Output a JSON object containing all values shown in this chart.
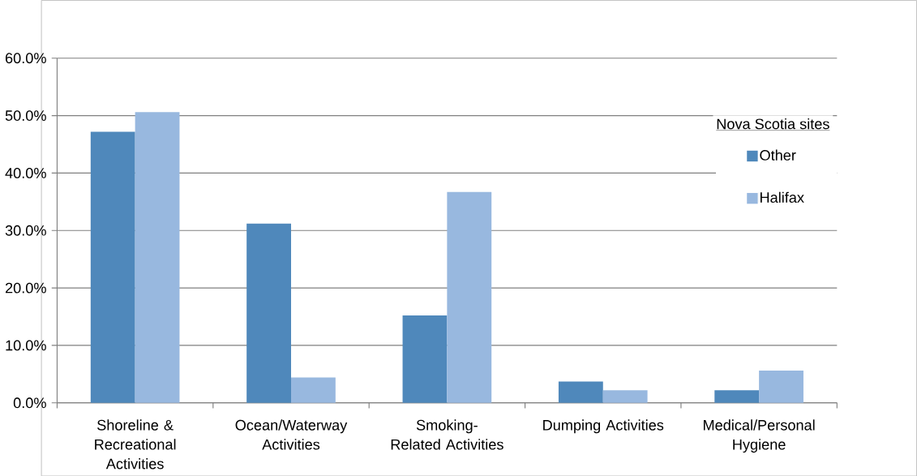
{
  "chart_data": {
    "type": "bar",
    "categories": [
      "Shoreline & Recreational Activities",
      "Ocean/Waterway Activities",
      "Smoking-Related Activities",
      "Dumping Activities",
      "Medical/Personal Hygiene"
    ],
    "series": [
      {
        "name": "Other",
        "color": "#4f88bb",
        "values": [
          47.2,
          31.2,
          15.2,
          3.7,
          2.2
        ]
      },
      {
        "name": "Halifax",
        "color": "#98b8df",
        "values": [
          50.6,
          4.4,
          36.7,
          2.2,
          5.6
        ]
      }
    ],
    "legend_title": "Nova Scotia sites",
    "ylim": [
      0,
      60
    ],
    "yticks": [
      {
        "value": 0,
        "label": "0.0%"
      },
      {
        "value": 10,
        "label": "10.0%"
      },
      {
        "value": 20,
        "label": "20.0%"
      },
      {
        "value": 30,
        "label": "30.0%"
      },
      {
        "value": 40,
        "label": "40.0%"
      },
      {
        "value": 50,
        "label": "50.0%"
      },
      {
        "value": 60,
        "label": "60.0%"
      }
    ],
    "grid": "y",
    "legend": "right"
  }
}
